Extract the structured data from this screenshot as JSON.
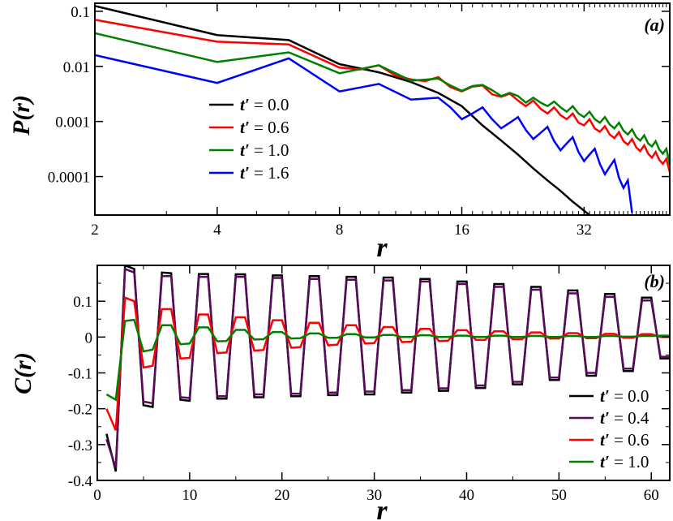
{
  "chart_data": [
    {
      "type": "line",
      "panel_label": "(a)",
      "xlabel": "r",
      "ylabel": "P(r)",
      "xscale": "log",
      "yscale": "log",
      "xlim": [
        2,
        52
      ],
      "ylim": [
        2e-05,
        0.14
      ],
      "xticks": [
        2,
        4,
        8,
        16,
        32
      ],
      "xtick_labels": [
        "2",
        "4",
        "8",
        "16",
        "32"
      ],
      "yticks": [
        0.1,
        0.01,
        0.001,
        0.0001
      ],
      "ytick_labels": [
        "0.1",
        "0.01",
        "0.001",
        "0.0001"
      ],
      "legend_position": "center-left",
      "series": [
        {
          "name": "t′ = 0.0",
          "legend_value": "0.0",
          "color": "#000000",
          "x": [
            2,
            4,
            6,
            8,
            10,
            12,
            14,
            16,
            18,
            20,
            22,
            24,
            26,
            28,
            30,
            32,
            33
          ],
          "y": [
            0.125,
            0.037,
            0.03,
            0.011,
            0.0078,
            0.0052,
            0.0033,
            0.0019,
            0.00085,
            0.00045,
            0.00025,
            0.00014,
            8.5e-05,
            5.5e-05,
            3.5e-05,
            2.4e-05,
            2e-05
          ]
        },
        {
          "name": "t′ = 0.6",
          "legend_value": "0.6",
          "color": "#ff0000",
          "x": [
            2,
            4,
            6,
            8,
            9,
            10,
            11,
            12,
            13,
            14,
            15,
            16,
            17,
            18,
            19,
            20,
            21,
            22,
            23,
            24,
            25,
            26,
            27,
            28,
            29,
            30,
            31,
            32,
            33,
            34,
            35,
            36,
            37,
            38,
            39,
            40,
            41,
            42,
            43,
            44,
            45,
            46,
            47,
            48,
            49,
            50,
            51,
            52
          ],
          "y": [
            0.07,
            0.028,
            0.025,
            0.0095,
            0.0088,
            0.0105,
            0.0068,
            0.0058,
            0.0054,
            0.0064,
            0.0042,
            0.0035,
            0.0043,
            0.0045,
            0.0031,
            0.0028,
            0.0032,
            0.0024,
            0.0019,
            0.0024,
            0.0017,
            0.0014,
            0.0018,
            0.0013,
            0.0011,
            0.0014,
            0.00095,
            0.00085,
            0.0011,
            0.00075,
            0.00065,
            0.00082,
            0.00058,
            0.0005,
            0.00064,
            0.00044,
            0.00038,
            0.00048,
            0.00034,
            0.00029,
            0.00037,
            0.00026,
            0.00022,
            0.00028,
            0.0002,
            0.00017,
            0.00021,
            0.00012
          ]
        },
        {
          "name": "t′ = 1.0",
          "legend_value": "1.0",
          "color": "#008000",
          "x": [
            2,
            4,
            6,
            8,
            10,
            12,
            14,
            15,
            16,
            17,
            18,
            19,
            20,
            21,
            22,
            23,
            24,
            25,
            26,
            27,
            28,
            29,
            30,
            31,
            32,
            33,
            34,
            35,
            36,
            37,
            38,
            39,
            40,
            41,
            42,
            43,
            44,
            45,
            46,
            47,
            48,
            49,
            50,
            51,
            52
          ],
          "y": [
            0.04,
            0.012,
            0.018,
            0.0075,
            0.0105,
            0.0055,
            0.006,
            0.0045,
            0.0036,
            0.0044,
            0.0046,
            0.0037,
            0.0029,
            0.0033,
            0.0029,
            0.0022,
            0.0027,
            0.0022,
            0.0019,
            0.0023,
            0.0018,
            0.0015,
            0.0019,
            0.0014,
            0.0012,
            0.0015,
            0.0011,
            0.00095,
            0.0012,
            0.00088,
            0.00075,
            0.00095,
            0.00068,
            0.00058,
            0.00072,
            0.00052,
            0.00045,
            0.00056,
            0.0004,
            0.00035,
            0.00044,
            0.00031,
            0.00026,
            0.00032,
            0.00017
          ]
        },
        {
          "name": "t′ = 1.6",
          "legend_value": "1.6",
          "color": "#0000ff",
          "x": [
            2,
            4,
            6,
            8,
            10,
            12,
            14,
            15,
            16,
            17,
            18,
            19,
            20,
            21,
            22,
            23,
            24,
            25,
            26,
            27,
            28,
            29,
            30,
            31,
            32,
            33,
            34,
            35,
            36,
            37,
            38,
            39,
            40,
            41,
            42
          ],
          "y": [
            0.016,
            0.005,
            0.014,
            0.0035,
            0.0048,
            0.0025,
            0.0027,
            0.0018,
            0.0011,
            0.0014,
            0.0018,
            0.0011,
            0.00075,
            0.00095,
            0.0012,
            0.0007,
            0.00048,
            0.00062,
            0.0008,
            0.00044,
            0.0003,
            0.0004,
            0.00052,
            0.00028,
            0.00019,
            0.00025,
            0.00032,
            0.00017,
            0.00011,
            0.00015,
            0.0002,
            9.5e-05,
            6.2e-05,
            8.5e-05,
            2.2e-05
          ]
        }
      ]
    },
    {
      "type": "line",
      "panel_label": "(b)",
      "xlabel": "r",
      "ylabel": "C(r)",
      "xlim": [
        0,
        62
      ],
      "ylim": [
        -0.4,
        0.2
      ],
      "xticks": [
        0,
        10,
        20,
        30,
        40,
        50,
        60
      ],
      "xtick_labels": [
        "0",
        "10",
        "20",
        "30",
        "40",
        "50",
        "60"
      ],
      "yticks": [
        0.1,
        0,
        -0.1,
        -0.2,
        -0.3,
        -0.4
      ],
      "ytick_labels": [
        "0.1",
        "0",
        "-0.1",
        "-0.2",
        "-0.3",
        "-0.4"
      ],
      "legend_position": "bottom-right",
      "series": [
        {
          "name": "t′ = 0.0",
          "legend_value": "0.0",
          "color": "#000000",
          "x": [
            1,
            2,
            3,
            4,
            5,
            6,
            7,
            8,
            9,
            10,
            11,
            12,
            13,
            14,
            15,
            16,
            17,
            18,
            19,
            20,
            21,
            22,
            23,
            24,
            25,
            26,
            27,
            28,
            29,
            30,
            31,
            32,
            33,
            34,
            35,
            36,
            37,
            38,
            39,
            40,
            41,
            42,
            43,
            44,
            45,
            46,
            47,
            48,
            49,
            50,
            51,
            52,
            53,
            54,
            55,
            56,
            57,
            58,
            59,
            60,
            61,
            62
          ],
          "y": [
            -0.27,
            -0.375,
            0.2,
            0.19,
            -0.19,
            -0.195,
            0.18,
            0.178,
            -0.175,
            -0.178,
            0.176,
            0.176,
            -0.172,
            -0.172,
            0.175,
            0.175,
            -0.168,
            -0.168,
            0.172,
            0.172,
            -0.165,
            -0.165,
            0.17,
            0.17,
            -0.162,
            -0.162,
            0.168,
            0.168,
            -0.16,
            -0.16,
            0.166,
            0.166,
            -0.155,
            -0.155,
            0.162,
            0.162,
            -0.15,
            -0.15,
            0.155,
            0.155,
            -0.142,
            -0.142,
            0.148,
            0.148,
            -0.132,
            -0.132,
            0.14,
            0.14,
            -0.12,
            -0.12,
            0.13,
            0.13,
            -0.108,
            -0.108,
            0.12,
            0.12,
            -0.095,
            -0.095,
            0.11,
            0.11,
            -0.06,
            -0.06
          ]
        },
        {
          "name": "t′ = 0.4",
          "legend_value": "0.4",
          "color": "#5a0a5a",
          "x": [
            1,
            2,
            3,
            4,
            5,
            6,
            7,
            8,
            9,
            10,
            11,
            12,
            13,
            14,
            15,
            16,
            17,
            18,
            19,
            20,
            21,
            22,
            23,
            24,
            25,
            26,
            27,
            28,
            29,
            30,
            31,
            32,
            33,
            34,
            35,
            36,
            37,
            38,
            39,
            40,
            41,
            42,
            43,
            44,
            45,
            46,
            47,
            48,
            49,
            50,
            51,
            52,
            53,
            54,
            55,
            56,
            57,
            58,
            59,
            60,
            61,
            62
          ],
          "y": [
            -0.285,
            -0.365,
            0.19,
            0.18,
            -0.18,
            -0.185,
            0.17,
            0.17,
            -0.168,
            -0.17,
            0.168,
            0.168,
            -0.165,
            -0.165,
            0.168,
            0.168,
            -0.16,
            -0.16,
            0.165,
            0.165,
            -0.158,
            -0.158,
            0.162,
            0.162,
            -0.155,
            -0.155,
            0.16,
            0.16,
            -0.152,
            -0.152,
            0.158,
            0.158,
            -0.148,
            -0.148,
            0.155,
            0.155,
            -0.143,
            -0.143,
            0.148,
            0.148,
            -0.135,
            -0.135,
            0.14,
            0.14,
            -0.125,
            -0.125,
            0.132,
            0.132,
            -0.113,
            -0.113,
            0.122,
            0.122,
            -0.1,
            -0.1,
            0.112,
            0.112,
            -0.088,
            -0.088,
            0.102,
            0.102,
            -0.055,
            -0.055
          ]
        },
        {
          "name": "t′ = 0.6",
          "legend_value": "0.6",
          "color": "#ff0000",
          "x": [
            1,
            2,
            3,
            4,
            5,
            6,
            7,
            8,
            9,
            10,
            11,
            12,
            13,
            14,
            15,
            16,
            17,
            18,
            19,
            20,
            21,
            22,
            23,
            24,
            25,
            26,
            27,
            28,
            29,
            30,
            31,
            32,
            33,
            34,
            35,
            36,
            37,
            38,
            39,
            40,
            41,
            42,
            43,
            44,
            45,
            46,
            47,
            48,
            49,
            50,
            51,
            52,
            53,
            54,
            55,
            56,
            57,
            58,
            59,
            60,
            61,
            62
          ],
          "y": [
            -0.2,
            -0.26,
            0.11,
            0.1,
            -0.085,
            -0.08,
            0.078,
            0.078,
            -0.06,
            -0.058,
            0.063,
            0.063,
            -0.045,
            -0.043,
            0.055,
            0.055,
            -0.038,
            -0.036,
            0.047,
            0.047,
            -0.03,
            -0.028,
            0.04,
            0.04,
            -0.023,
            -0.021,
            0.033,
            0.033,
            -0.018,
            -0.017,
            0.028,
            0.028,
            -0.014,
            -0.013,
            0.023,
            0.023,
            -0.011,
            -0.01,
            0.019,
            0.019,
            -0.008,
            -0.008,
            0.016,
            0.016,
            -0.006,
            -0.006,
            0.013,
            0.013,
            -0.004,
            -0.004,
            0.011,
            0.011,
            -0.003,
            -0.003,
            0.009,
            0.009,
            -0.002,
            -0.002,
            0.008,
            0.008,
            0.0,
            0.0
          ]
        },
        {
          "name": "t′ = 1.0",
          "legend_value": "1.0",
          "color": "#008000",
          "x": [
            1,
            2,
            3,
            4,
            5,
            6,
            7,
            8,
            9,
            10,
            11,
            12,
            13,
            14,
            15,
            16,
            17,
            18,
            19,
            20,
            21,
            22,
            23,
            24,
            25,
            26,
            27,
            28,
            29,
            30,
            31,
            32,
            33,
            34,
            35,
            36,
            37,
            38,
            39,
            40,
            41,
            42,
            43,
            44,
            45,
            46,
            47,
            48,
            49,
            50,
            51,
            52,
            53,
            54,
            55,
            56,
            57,
            58,
            59,
            60,
            61,
            62
          ],
          "y": [
            -0.16,
            -0.175,
            0.045,
            0.048,
            -0.04,
            -0.035,
            0.033,
            0.033,
            -0.02,
            -0.018,
            0.027,
            0.027,
            -0.012,
            -0.011,
            0.02,
            0.02,
            -0.007,
            -0.006,
            0.014,
            0.014,
            -0.004,
            -0.003,
            0.01,
            0.01,
            -0.002,
            -0.002,
            0.008,
            0.008,
            -0.001,
            -0.001,
            0.006,
            0.006,
            0.0,
            0.0,
            0.005,
            0.005,
            0.0,
            0.0,
            0.004,
            0.004,
            0.0,
            0.0,
            0.004,
            0.004,
            0.0,
            0.0,
            0.003,
            0.003,
            0.0,
            0.0,
            0.003,
            0.003,
            0.0,
            0.0,
            0.003,
            0.003,
            0.001,
            0.001,
            0.003,
            0.003,
            0.004,
            0.004
          ]
        }
      ]
    }
  ]
}
